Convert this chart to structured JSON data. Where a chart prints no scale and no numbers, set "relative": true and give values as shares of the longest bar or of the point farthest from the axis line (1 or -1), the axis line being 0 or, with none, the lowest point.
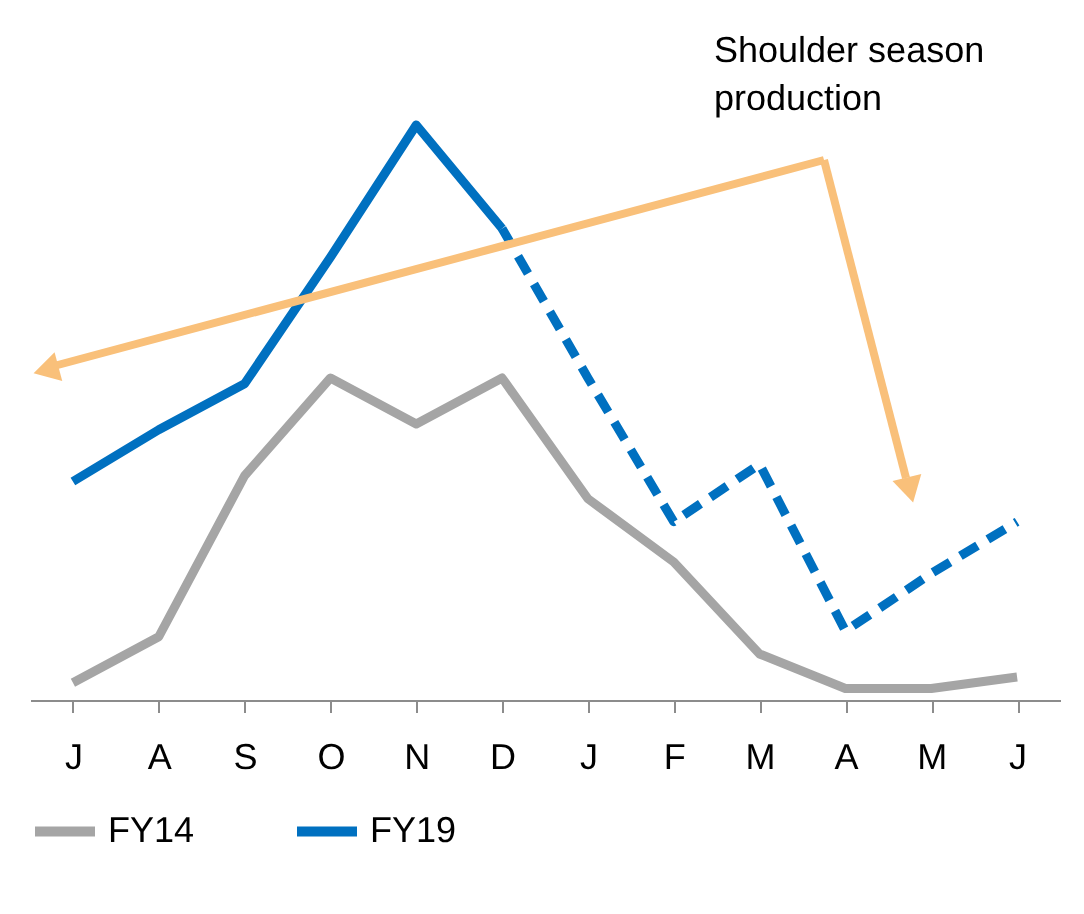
{
  "chart_data": {
    "type": "line",
    "relative": true,
    "categories": [
      "J",
      "A",
      "S",
      "O",
      "N",
      "D",
      "J",
      "F",
      "M",
      "A",
      "M",
      "J"
    ],
    "series": [
      {
        "name": "FY14",
        "color": "#a5a5a5",
        "values": [
          0.03,
          0.11,
          0.39,
          0.56,
          0.48,
          0.56,
          0.35,
          0.24,
          0.08,
          0.02,
          0.02,
          0.04
        ]
      },
      {
        "name": "FY19",
        "color": "#0070c0",
        "values": [
          0.38,
          0.47,
          0.55,
          0.77,
          1,
          0.82,
          null,
          null,
          null,
          null,
          null,
          null
        ]
      },
      {
        "color": "#0070c0",
        "line_style": "dashed",
        "values": [
          null,
          null,
          null,
          null,
          null,
          0.82,
          0.56,
          0.31,
          0.41,
          0.12,
          0.22,
          0.31
        ]
      }
    ],
    "annotations": [
      "Shoulder season production"
    ],
    "legend": "bottom",
    "grid": false
  }
}
